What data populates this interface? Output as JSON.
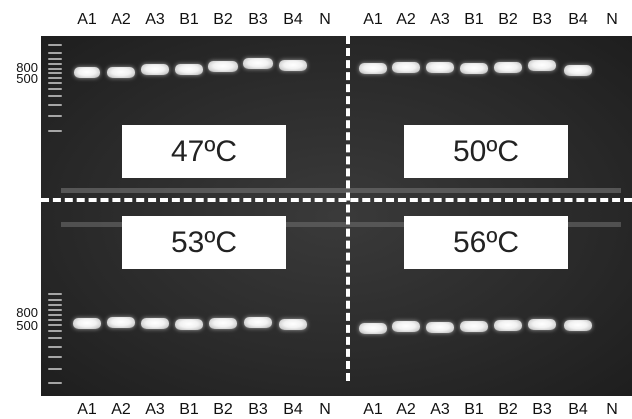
{
  "lanes": [
    "A1",
    "A2",
    "A3",
    "B1",
    "B2",
    "B3",
    "B4",
    "N"
  ],
  "markers": {
    "upper": "800",
    "lower": "500"
  },
  "temperatures": {
    "top_left": "47ºC",
    "top_right": "50ºC",
    "bottom_left": "53ºC",
    "bottom_right": "56ºC"
  },
  "colors": {
    "gel": "#2b2b2b",
    "band": "#ffffff",
    "divider": "#ffffff"
  }
}
